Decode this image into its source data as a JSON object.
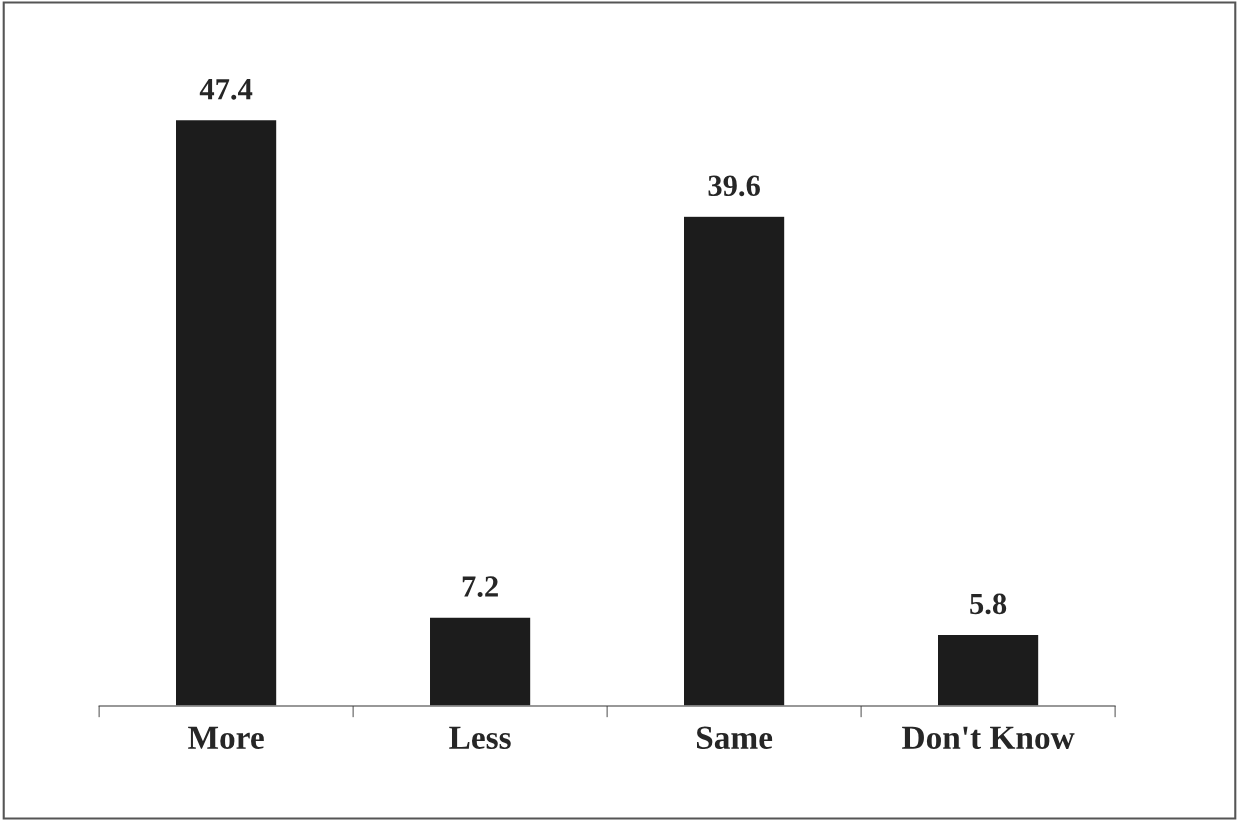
{
  "chart_data": {
    "type": "bar",
    "categories": [
      "More",
      "Less",
      "Same",
      "Don't Know"
    ],
    "values": [
      47.4,
      7.2,
      39.6,
      5.8
    ],
    "color": "#1c1c1c",
    "data_labels": true,
    "grid": false,
    "legend": false
  }
}
